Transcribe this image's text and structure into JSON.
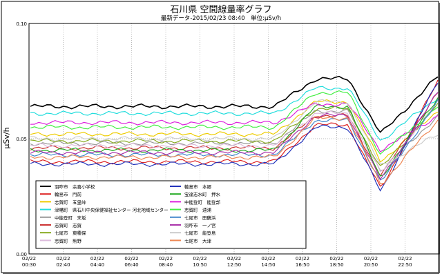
{
  "chart_data": {
    "type": "line",
    "title": "石川県 空間線量率グラフ",
    "subtitle": "最新データ-2015/02/23 08:40　単位:μSv/h",
    "ylabel": "μSv/h",
    "xlabel": "",
    "ylim": [
      0.0,
      0.1
    ],
    "yticks": [
      "0.00",
      "0.05",
      "0.10"
    ],
    "xticks": [
      [
        "02/22",
        "00:30"
      ],
      [
        "02/22",
        "02:40"
      ],
      [
        "02/22",
        "04:40"
      ],
      [
        "02/22",
        "06:40"
      ],
      [
        "02/22",
        "08:40"
      ],
      [
        "02/22",
        "10:50"
      ],
      [
        "02/22",
        "12:50"
      ],
      [
        "02/22",
        "14:50"
      ],
      [
        "02/22",
        "16:50"
      ],
      [
        "02/22",
        "18:50"
      ],
      [
        "02/22",
        "20:50"
      ],
      [
        "02/22",
        "22:50"
      ]
    ],
    "grid": true,
    "legend_position": "bottom-left",
    "x_points": 100,
    "series": [
      {
        "name": "羽咋市　余喜小学校",
        "color": "#000000",
        "base": 0.064,
        "peak": 0.076,
        "end": 0.077
      },
      {
        "name": "輪島市　門前",
        "color": "#dd2222",
        "base": 0.04,
        "peak": 0.056,
        "end": 0.075
      },
      {
        "name": "志賀町　五里峠",
        "color": "#eecc00",
        "base": 0.052,
        "peak": 0.066,
        "end": 0.062
      },
      {
        "name": "津幡町　県石川中央保健福祉センター 河北地域センター",
        "color": "#22dddd",
        "base": 0.061,
        "peak": 0.072,
        "end": 0.068
      },
      {
        "name": "中能登町　末坂",
        "color": "#999999",
        "base": 0.048,
        "peak": 0.062,
        "end": 0.06
      },
      {
        "name": "志賀町　志賀",
        "color": "#cc3333",
        "base": 0.046,
        "peak": 0.06,
        "end": 0.07
      },
      {
        "name": "七尾市　東種保",
        "color": "#88aa22",
        "base": 0.049,
        "peak": 0.063,
        "end": 0.065
      },
      {
        "name": "志賀町　熊野",
        "color": "#ddbbdd",
        "base": 0.047,
        "peak": 0.061,
        "end": 0.066
      },
      {
        "name": "輪島市　本郷",
        "color": "#2233bb",
        "base": 0.039,
        "peak": 0.055,
        "end": 0.075
      },
      {
        "name": "宝達志水町　押水",
        "color": "#22aa22",
        "base": 0.045,
        "peak": 0.064,
        "end": 0.068
      },
      {
        "name": "中能登町　能登部",
        "color": "#dd22dd",
        "base": 0.057,
        "peak": 0.065,
        "end": 0.06
      },
      {
        "name": "志賀町　通浦",
        "color": "#44ee44",
        "base": 0.055,
        "peak": 0.07,
        "end": 0.064
      },
      {
        "name": "七尾市　田鶴浜",
        "color": "#4488cc",
        "base": 0.043,
        "peak": 0.058,
        "end": 0.066
      },
      {
        "name": "羽咋市　一ノ宮",
        "color": "#aa33aa",
        "base": 0.044,
        "peak": 0.06,
        "end": 0.07
      },
      {
        "name": "七尾市　能登島",
        "color": "#cccccc",
        "base": 0.05,
        "peak": 0.066,
        "end": 0.052
      },
      {
        "name": "七尾市　大津",
        "color": "#ee8855",
        "base": 0.042,
        "peak": 0.059,
        "end": 0.058
      }
    ]
  }
}
